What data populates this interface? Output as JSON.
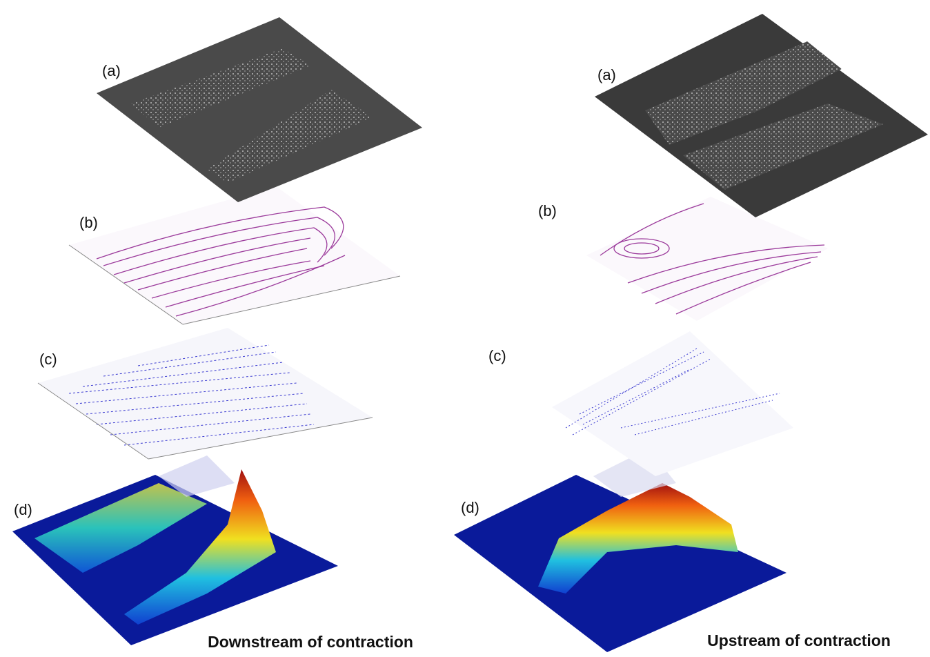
{
  "panels": [
    {
      "caption": "Downstream of contraction",
      "layers": [
        {
          "label": "(a)"
        },
        {
          "label": "(b)"
        },
        {
          "label": "(c)"
        },
        {
          "label": "(d)"
        }
      ]
    },
    {
      "caption": "Upstream of contraction",
      "layers": [
        {
          "label": "(a)"
        },
        {
          "label": "(b)"
        },
        {
          "label": "(c)"
        },
        {
          "label": "(d)"
        }
      ]
    }
  ]
}
